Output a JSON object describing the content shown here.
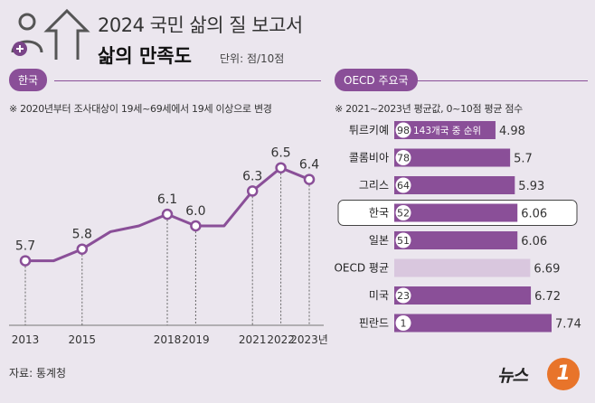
{
  "header": {
    "title": "2024 국민 삶의 질 보고서",
    "subtitle": "삶의 만족도",
    "unit": "단위: 점/10점"
  },
  "left_panel": {
    "tag": "한국",
    "note": "※ 2020년부터 조사대상이 19세~69세에서 19세 이상으로 변경"
  },
  "right_panel": {
    "tag": "OECD 주요국",
    "note": "※ 2021~2023년 평균값, 0~10점 평균 점수",
    "rank_note": "143개국 중 순위"
  },
  "source": "자료: 통계청",
  "logo": {
    "text": "뉴스",
    "badge": "1"
  },
  "colors": {
    "accent": "#8a4f98",
    "oecd_bar": "#d9c7de",
    "background": "#ebe6ee"
  },
  "icons": [
    "person-plus-icon",
    "arrow-up-icon"
  ],
  "chart_data": [
    {
      "type": "line",
      "x_labels": [
        "2013",
        "2015",
        "2018",
        "2019",
        "2021",
        "2022",
        "2023년"
      ],
      "x": [
        2013,
        2014,
        2015,
        2016,
        2017,
        2018,
        2019,
        2020,
        2021,
        2022,
        2023
      ],
      "values": [
        5.7,
        5.7,
        5.8,
        5.95,
        6.0,
        6.1,
        6.0,
        6.0,
        6.3,
        6.5,
        6.4
      ],
      "labeled_points": [
        {
          "x": 2013,
          "y": 5.7,
          "label": "5.7"
        },
        {
          "x": 2015,
          "y": 5.8,
          "label": "5.8"
        },
        {
          "x": 2018,
          "y": 6.1,
          "label": "6.1"
        },
        {
          "x": 2019,
          "y": 6.0,
          "label": "6.0"
        },
        {
          "x": 2021,
          "y": 6.3,
          "label": "6.3"
        },
        {
          "x": 2022,
          "y": 6.5,
          "label": "6.5"
        },
        {
          "x": 2023,
          "y": 6.4,
          "label": "6.4"
        }
      ],
      "xlim": [
        2013,
        2023
      ],
      "ylim": [
        5.3,
        6.7
      ]
    },
    {
      "type": "bar",
      "orientation": "horizontal",
      "categories": [
        "튀르키예",
        "콜롬비아",
        "그리스",
        "한국",
        "일본",
        "OECD 평균",
        "미국",
        "핀란드"
      ],
      "values": [
        4.98,
        5.7,
        5.93,
        6.06,
        6.06,
        6.69,
        6.72,
        7.74
      ],
      "value_labels": [
        "4.98",
        "5.7",
        "5.93",
        "6.06",
        "6.06",
        "6.69",
        "6.72",
        "7.74"
      ],
      "ranks": [
        "98",
        "78",
        "64",
        "52",
        "51",
        "",
        "23",
        "1"
      ],
      "highlight": "한국",
      "xlim": [
        0,
        7.74
      ]
    }
  ]
}
